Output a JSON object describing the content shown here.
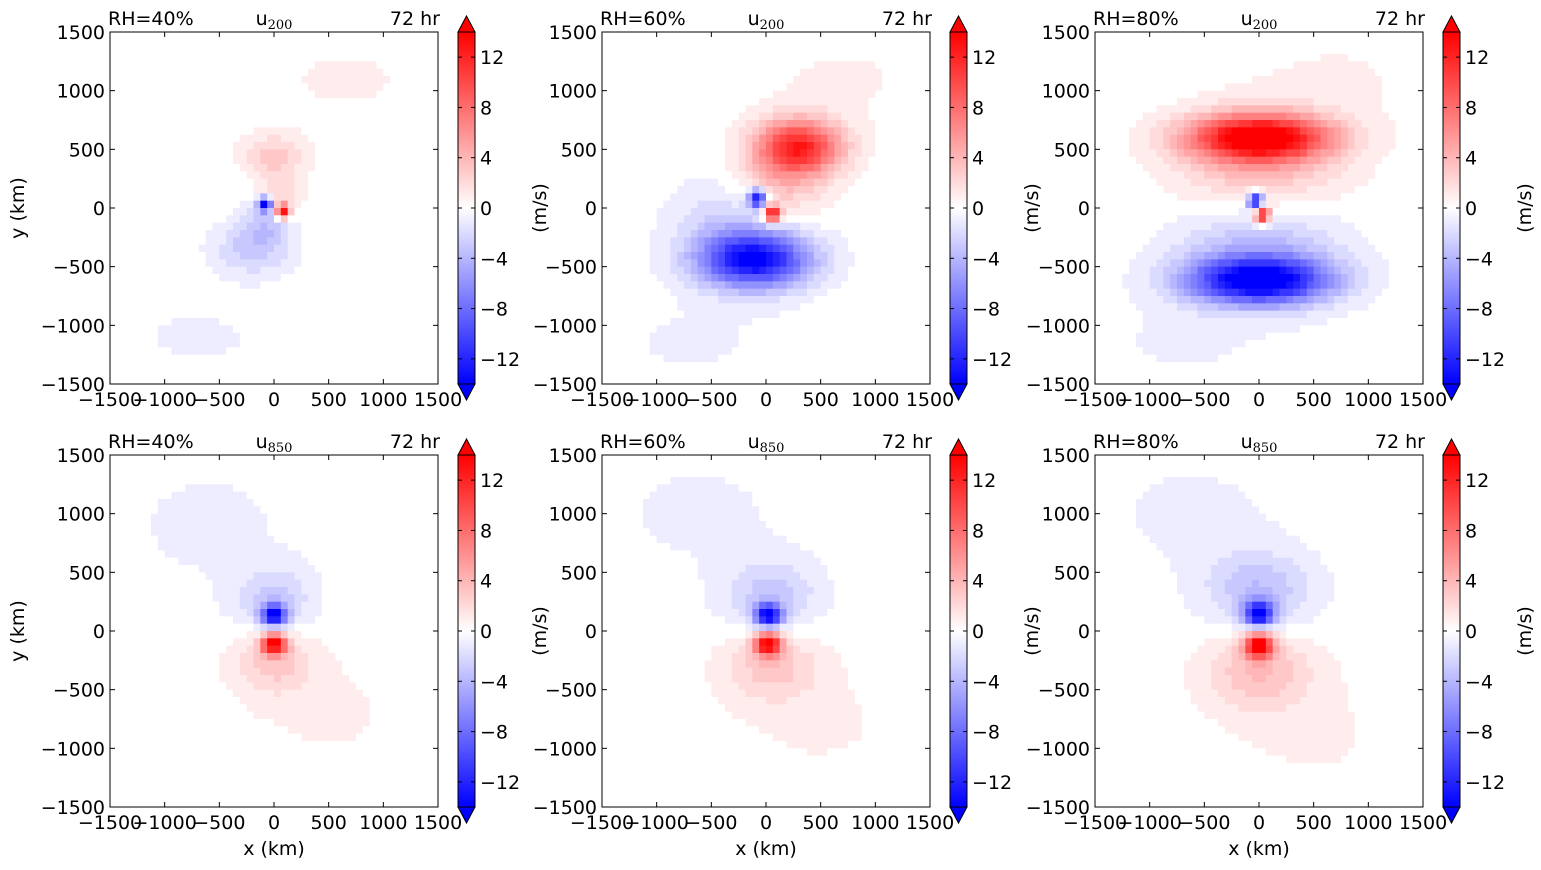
{
  "chart_data": {
    "type": "heatmap",
    "layout": {
      "rows": 2,
      "cols": 3
    },
    "xlim": [
      -1500,
      1500
    ],
    "ylim": [
      -1500,
      1500
    ],
    "xticks": [
      -1500,
      -1000,
      -500,
      0,
      500,
      1000,
      1500
    ],
    "yticks": [
      -1500,
      -1000,
      -500,
      0,
      500,
      1000,
      1500
    ],
    "xticklabels": [
      "−1500",
      "−1000",
      "−500",
      "0",
      "500",
      "1000",
      "1500"
    ],
    "yticklabels": [
      "−1500",
      "−1000",
      "−500",
      "0",
      "500",
      "1000",
      "1500"
    ],
    "xlabel": "x (km)",
    "ylabel": "y (km)",
    "colorbar": {
      "label": "(m/s)",
      "range": [
        -14,
        14
      ],
      "ticks": [
        -12,
        -8,
        -4,
        0,
        4,
        8,
        12
      ],
      "ticklabels": [
        "−12",
        "−8",
        "−4",
        "0",
        "4",
        "8",
        "12"
      ],
      "extend": "both",
      "colormap": "bwr",
      "min_color": "#0000ff",
      "mid_color": "#ffffff",
      "max_color": "#ff0000"
    },
    "panels": [
      {
        "row": 0,
        "col": 0,
        "left_title": "RH=40%",
        "center_title": "u",
        "center_sub": "200",
        "right_title": "72 hr",
        "level": 200,
        "rh": 40,
        "features": [
          {
            "x": 0,
            "y": 450,
            "sx": 280,
            "sy": 170,
            "u": 3
          },
          {
            "x": 50,
            "y": 100,
            "sx": 200,
            "sy": 200,
            "u": 3
          },
          {
            "x": -200,
            "y": -350,
            "sx": 340,
            "sy": 220,
            "u": -3
          },
          {
            "x": -50,
            "y": -100,
            "sx": 220,
            "sy": 200,
            "u": -3
          },
          {
            "x": -80,
            "y": 30,
            "sx": 60,
            "sy": 60,
            "u": -14
          },
          {
            "x": 80,
            "y": -30,
            "sx": 60,
            "sy": 60,
            "u": 14
          },
          {
            "x": 650,
            "y": 1100,
            "sx": 900,
            "sy": 420,
            "u": 0.6
          },
          {
            "x": -700,
            "y": -1100,
            "sx": 900,
            "sy": 380,
            "u": -0.6
          }
        ]
      },
      {
        "row": 0,
        "col": 1,
        "left_title": "RH=60%",
        "center_title": "u",
        "center_sub": "200",
        "right_title": "72 hr",
        "level": 200,
        "rh": 60,
        "features": [
          {
            "x": 300,
            "y": 520,
            "sx": 380,
            "sy": 230,
            "u": 12
          },
          {
            "x": 100,
            "y": 150,
            "sx": 420,
            "sy": 330,
            "u": 4
          },
          {
            "x": -100,
            "y": -450,
            "sx": 480,
            "sy": 220,
            "u": -12
          },
          {
            "x": -200,
            "y": -200,
            "sx": 560,
            "sy": 420,
            "u": -4
          },
          {
            "x": -80,
            "y": 80,
            "sx": 80,
            "sy": 80,
            "u": -14
          },
          {
            "x": 60,
            "y": -50,
            "sx": 80,
            "sy": 70,
            "u": 14
          },
          {
            "x": 700,
            "y": 1100,
            "sx": 900,
            "sy": 420,
            "u": 0.6
          },
          {
            "x": -700,
            "y": -1150,
            "sx": 900,
            "sy": 380,
            "u": -0.6
          }
        ]
      },
      {
        "row": 0,
        "col": 2,
        "left_title": "RH=80%",
        "center_title": "u",
        "center_sub": "200",
        "right_title": "72 hr",
        "level": 200,
        "rh": 80,
        "features": [
          {
            "x": 0,
            "y": 600,
            "sx": 620,
            "sy": 190,
            "u": 14
          },
          {
            "x": 0,
            "y": 400,
            "sx": 720,
            "sy": 400,
            "u": 4
          },
          {
            "x": 0,
            "y": -620,
            "sx": 620,
            "sy": 190,
            "u": -14
          },
          {
            "x": 0,
            "y": -400,
            "sx": 720,
            "sy": 400,
            "u": -4
          },
          {
            "x": -30,
            "y": 60,
            "sx": 70,
            "sy": 70,
            "u": -14
          },
          {
            "x": 30,
            "y": -60,
            "sx": 70,
            "sy": 70,
            "u": 14
          },
          {
            "x": 700,
            "y": 1100,
            "sx": 900,
            "sy": 420,
            "u": 0.6
          },
          {
            "x": -700,
            "y": -1150,
            "sx": 900,
            "sy": 380,
            "u": -0.6
          }
        ]
      },
      {
        "row": 1,
        "col": 0,
        "left_title": "RH=40%",
        "center_title": "u",
        "center_sub": "850",
        "right_title": "72 hr",
        "level": 850,
        "rh": 40,
        "features": [
          {
            "x": 0,
            "y": 130,
            "sx": 110,
            "sy": 90,
            "u": -14
          },
          {
            "x": 0,
            "y": 250,
            "sx": 350,
            "sy": 280,
            "u": -3
          },
          {
            "x": 0,
            "y": -110,
            "sx": 110,
            "sy": 90,
            "u": 14
          },
          {
            "x": 0,
            "y": -250,
            "sx": 350,
            "sy": 280,
            "u": 3
          },
          {
            "x": -600,
            "y": 900,
            "sx": 900,
            "sy": 600,
            "u": -0.7
          },
          {
            "x": 500,
            "y": -700,
            "sx": 900,
            "sy": 600,
            "u": 0.6
          }
        ]
      },
      {
        "row": 1,
        "col": 1,
        "left_title": "RH=60%",
        "center_title": "u",
        "center_sub": "850",
        "right_title": "72 hr",
        "level": 850,
        "rh": 60,
        "features": [
          {
            "x": 20,
            "y": 130,
            "sx": 120,
            "sy": 100,
            "u": -14
          },
          {
            "x": 50,
            "y": 300,
            "sx": 430,
            "sy": 300,
            "u": -3
          },
          {
            "x": 20,
            "y": -110,
            "sx": 120,
            "sy": 100,
            "u": 14
          },
          {
            "x": 50,
            "y": -300,
            "sx": 430,
            "sy": 300,
            "u": 3
          },
          {
            "x": -600,
            "y": 1000,
            "sx": 900,
            "sy": 550,
            "u": -0.7
          },
          {
            "x": 500,
            "y": -800,
            "sx": 900,
            "sy": 550,
            "u": 0.6
          }
        ]
      },
      {
        "row": 1,
        "col": 2,
        "left_title": "RH=80%",
        "center_title": "u",
        "center_sub": "850",
        "right_title": "72 hr",
        "level": 850,
        "rh": 80,
        "features": [
          {
            "x": 0,
            "y": 140,
            "sx": 130,
            "sy": 110,
            "u": -14
          },
          {
            "x": 0,
            "y": 340,
            "sx": 480,
            "sy": 330,
            "u": -3.5
          },
          {
            "x": 0,
            "y": -120,
            "sx": 130,
            "sy": 110,
            "u": 14
          },
          {
            "x": 0,
            "y": -340,
            "sx": 480,
            "sy": 330,
            "u": 3.5
          },
          {
            "x": -600,
            "y": 1000,
            "sx": 900,
            "sy": 550,
            "u": -0.7
          },
          {
            "x": 500,
            "y": -900,
            "sx": 900,
            "sy": 550,
            "u": 0.6
          }
        ]
      }
    ]
  }
}
